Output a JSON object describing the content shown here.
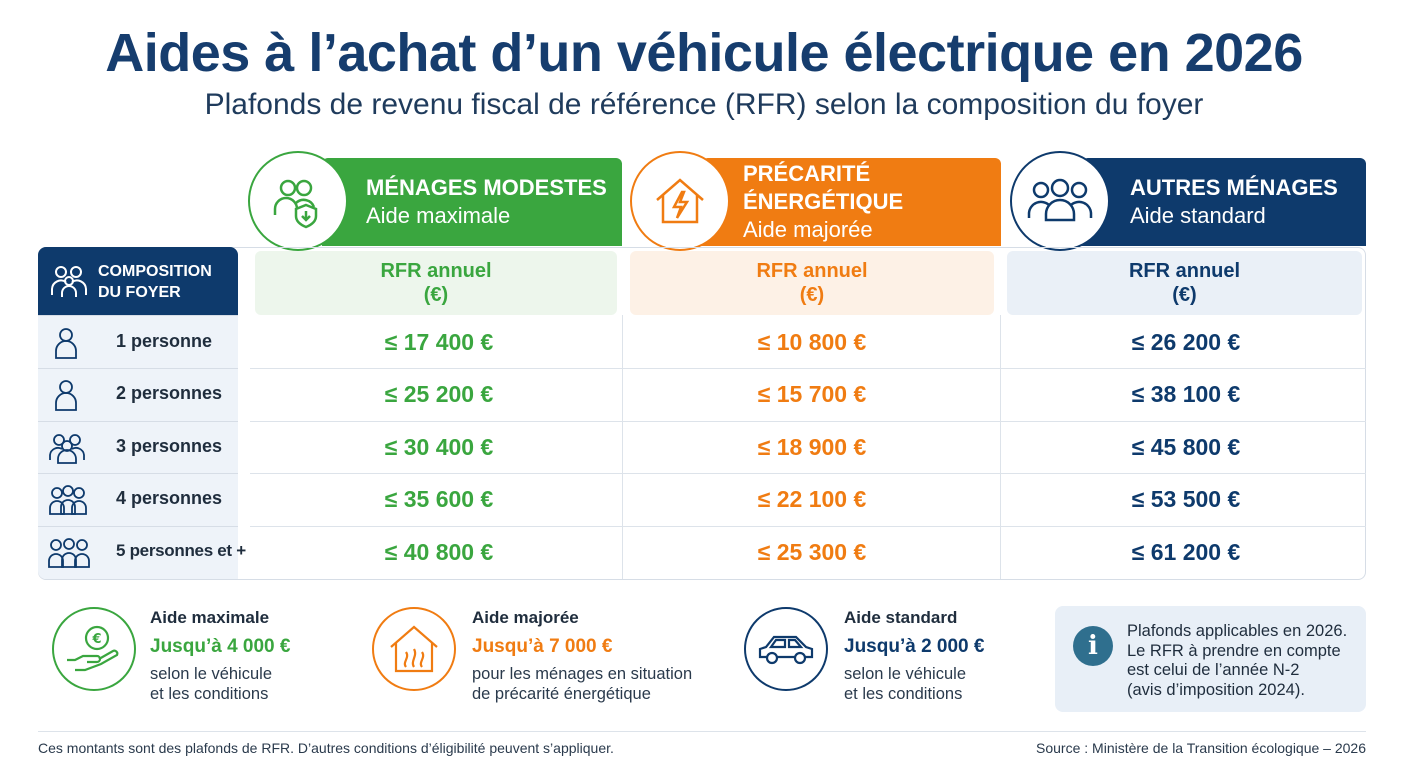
{
  "title": "Aides à l’achat d’un véhicule électrique en 2026",
  "subtitle": "Plafonds de revenu fiscal de référence (RFR) selon la composition du foyer",
  "colors": {
    "green": "#3aa63f",
    "orange": "#f07c12",
    "navy": "#0e3a6c"
  },
  "columns": [
    {
      "title": "MÉNAGES MODESTES",
      "subtitle": "Aide maximale",
      "icon": "households-shield-icon",
      "rfr_label": "RFR annuel",
      "rfr_unit": "(€)"
    },
    {
      "title": "PRÉCARITÉ ÉNERGÉTIQUE",
      "subtitle": "Aide majorée",
      "icon": "house-lightning-icon",
      "rfr_label": "RFR annuel",
      "rfr_unit": "(€)"
    },
    {
      "title": "AUTRES MÉNAGES",
      "subtitle": "Aide standard",
      "icon": "three-people-icon",
      "rfr_label": "RFR annuel",
      "rfr_unit": "(€)"
    }
  ],
  "composition_header": {
    "line1": "COMPOSITION",
    "line2": "DU FOYER",
    "icon": "family-icon"
  },
  "rows": [
    {
      "label": "1 personne",
      "icon": "person-icon",
      "values": [
        "≤ 17 400 €",
        "≤ 10 800 €",
        "≤ 26 200 €"
      ]
    },
    {
      "label": "2 personnes",
      "icon": "person-icon",
      "values": [
        "≤ 25 200 €",
        "≤ 15 700 €",
        "≤ 38 100 €"
      ]
    },
    {
      "label": "3 personnes",
      "icon": "group-icon",
      "values": [
        "≤ 30 400 €",
        "≤ 18 900 €",
        "≤ 45 800 €"
      ]
    },
    {
      "label": "4 personnes",
      "icon": "group-icon",
      "values": [
        "≤ 35 600 €",
        "≤ 22 100 €",
        "≤ 53 500 €"
      ]
    },
    {
      "label": "5 personnes et +",
      "icon": "group-icon",
      "values": [
        "≤ 40 800 €",
        "≤ 25 300 €",
        "≤ 61 200 €"
      ]
    }
  ],
  "aids": [
    {
      "title": "Aide maximale",
      "amount": "Jusqu’à 4 000 €",
      "desc1": "selon le véhicule",
      "desc2": "et les conditions",
      "icon": "hand-euro-icon"
    },
    {
      "title": "Aide majorée",
      "amount": "Jusqu’à 7 000 €",
      "desc1": "pour les ménages en situation",
      "desc2": "de précarité énergétique",
      "icon": "house-heat-icon"
    },
    {
      "title": "Aide standard",
      "amount": "Jusqu’à 2 000 €",
      "desc1": "selon le véhicule",
      "desc2": "et les conditions",
      "icon": "car-icon"
    }
  ],
  "info": {
    "icon": "info-icon",
    "line1": "Plafonds applicables en 2026.",
    "line2": "Le RFR à prendre en compte",
    "line3": "est celui de l’année N-2",
    "line4": "(avis d’imposition 2024)."
  },
  "footer": {
    "left": "Ces montants sont des plafonds de RFR. D’autres conditions d’éligibilité peuvent s’appliquer.",
    "right": "Source : Ministère de la Transition écologique – 2026"
  }
}
